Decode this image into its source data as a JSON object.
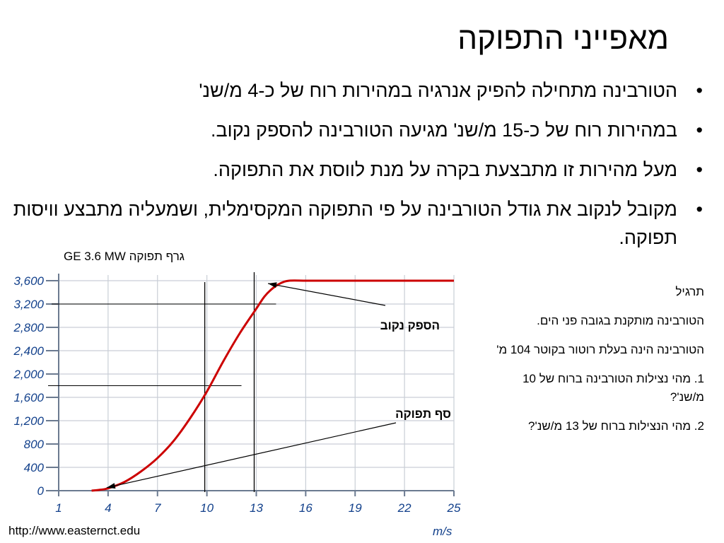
{
  "title": "מאפייני התפוקה",
  "bullets": [
    "הטורבינה מתחילה להפיק אנרגיה במהירות רוח של כ-4 מ/שנ'",
    "במהירות רוח של כ-15 מ/שנ' מגיעה הטורבינה להספק נקוב.",
    "מעל מהירות זו מתבצעת בקרה על מנת לווסת את התפוקה.",
    "מקובל לנקוב את גודל הטורבינה על פי התפוקה המקסימלית, ושמעליה מתבצע וויסות תפוקה."
  ],
  "graph_caption": "גרף תפוקה GE 3.6 MW",
  "sidebar": {
    "heading": "תרגיל",
    "p1": "הטורבינה מותקנת בגובה פני הים.",
    "p2": "הטורבינה הינה בעלת רוטור בקוטר 104 מ'",
    "q1": "1. מהי נצילות הטורבינה ברוח של 10 מ/שנ'?",
    "q2": "2. מהי הנצילות ברוח של 13 מ/שנ'?"
  },
  "source": "http://www.easternct.edu",
  "chart_data": {
    "type": "line",
    "title": "גרף תפוקה GE 3.6 MW",
    "xlabel": "m/s",
    "ylabel": "",
    "xlim": [
      1,
      25
    ],
    "ylim": [
      0,
      3600
    ],
    "xticks": [
      1,
      4,
      7,
      10,
      13,
      16,
      19,
      22,
      25
    ],
    "yticks": [
      "0",
      "400",
      "800",
      "1,200",
      "1,600",
      "2,000",
      "2,400",
      "2,800",
      "3,200",
      "3,600"
    ],
    "grid": true,
    "line_color": "#cc0000",
    "series": [
      {
        "x": [
          3.0,
          3.5,
          4,
          5,
          6,
          7,
          8,
          9,
          10,
          11,
          12,
          13,
          13.5,
          14,
          14.5,
          15,
          16,
          17,
          18,
          19,
          20,
          21,
          22,
          23,
          24,
          25
        ],
        "values": [
          0,
          15,
          40,
          150,
          330,
          560,
          860,
          1250,
          1700,
          2220,
          2700,
          3120,
          3330,
          3470,
          3560,
          3600,
          3600,
          3600,
          3600,
          3600,
          3600,
          3600,
          3600,
          3600,
          3600,
          3600
        ]
      }
    ],
    "reference_lines": {
      "horizontal": [
        3200,
        1800
      ],
      "vertical": [
        10,
        13
      ]
    },
    "annotations": [
      {
        "text": "הספק נקוב",
        "x": 15.0,
        "y": 3600
      },
      {
        "text": "סף תפוקה",
        "x": 4.0,
        "y": 40
      }
    ]
  }
}
